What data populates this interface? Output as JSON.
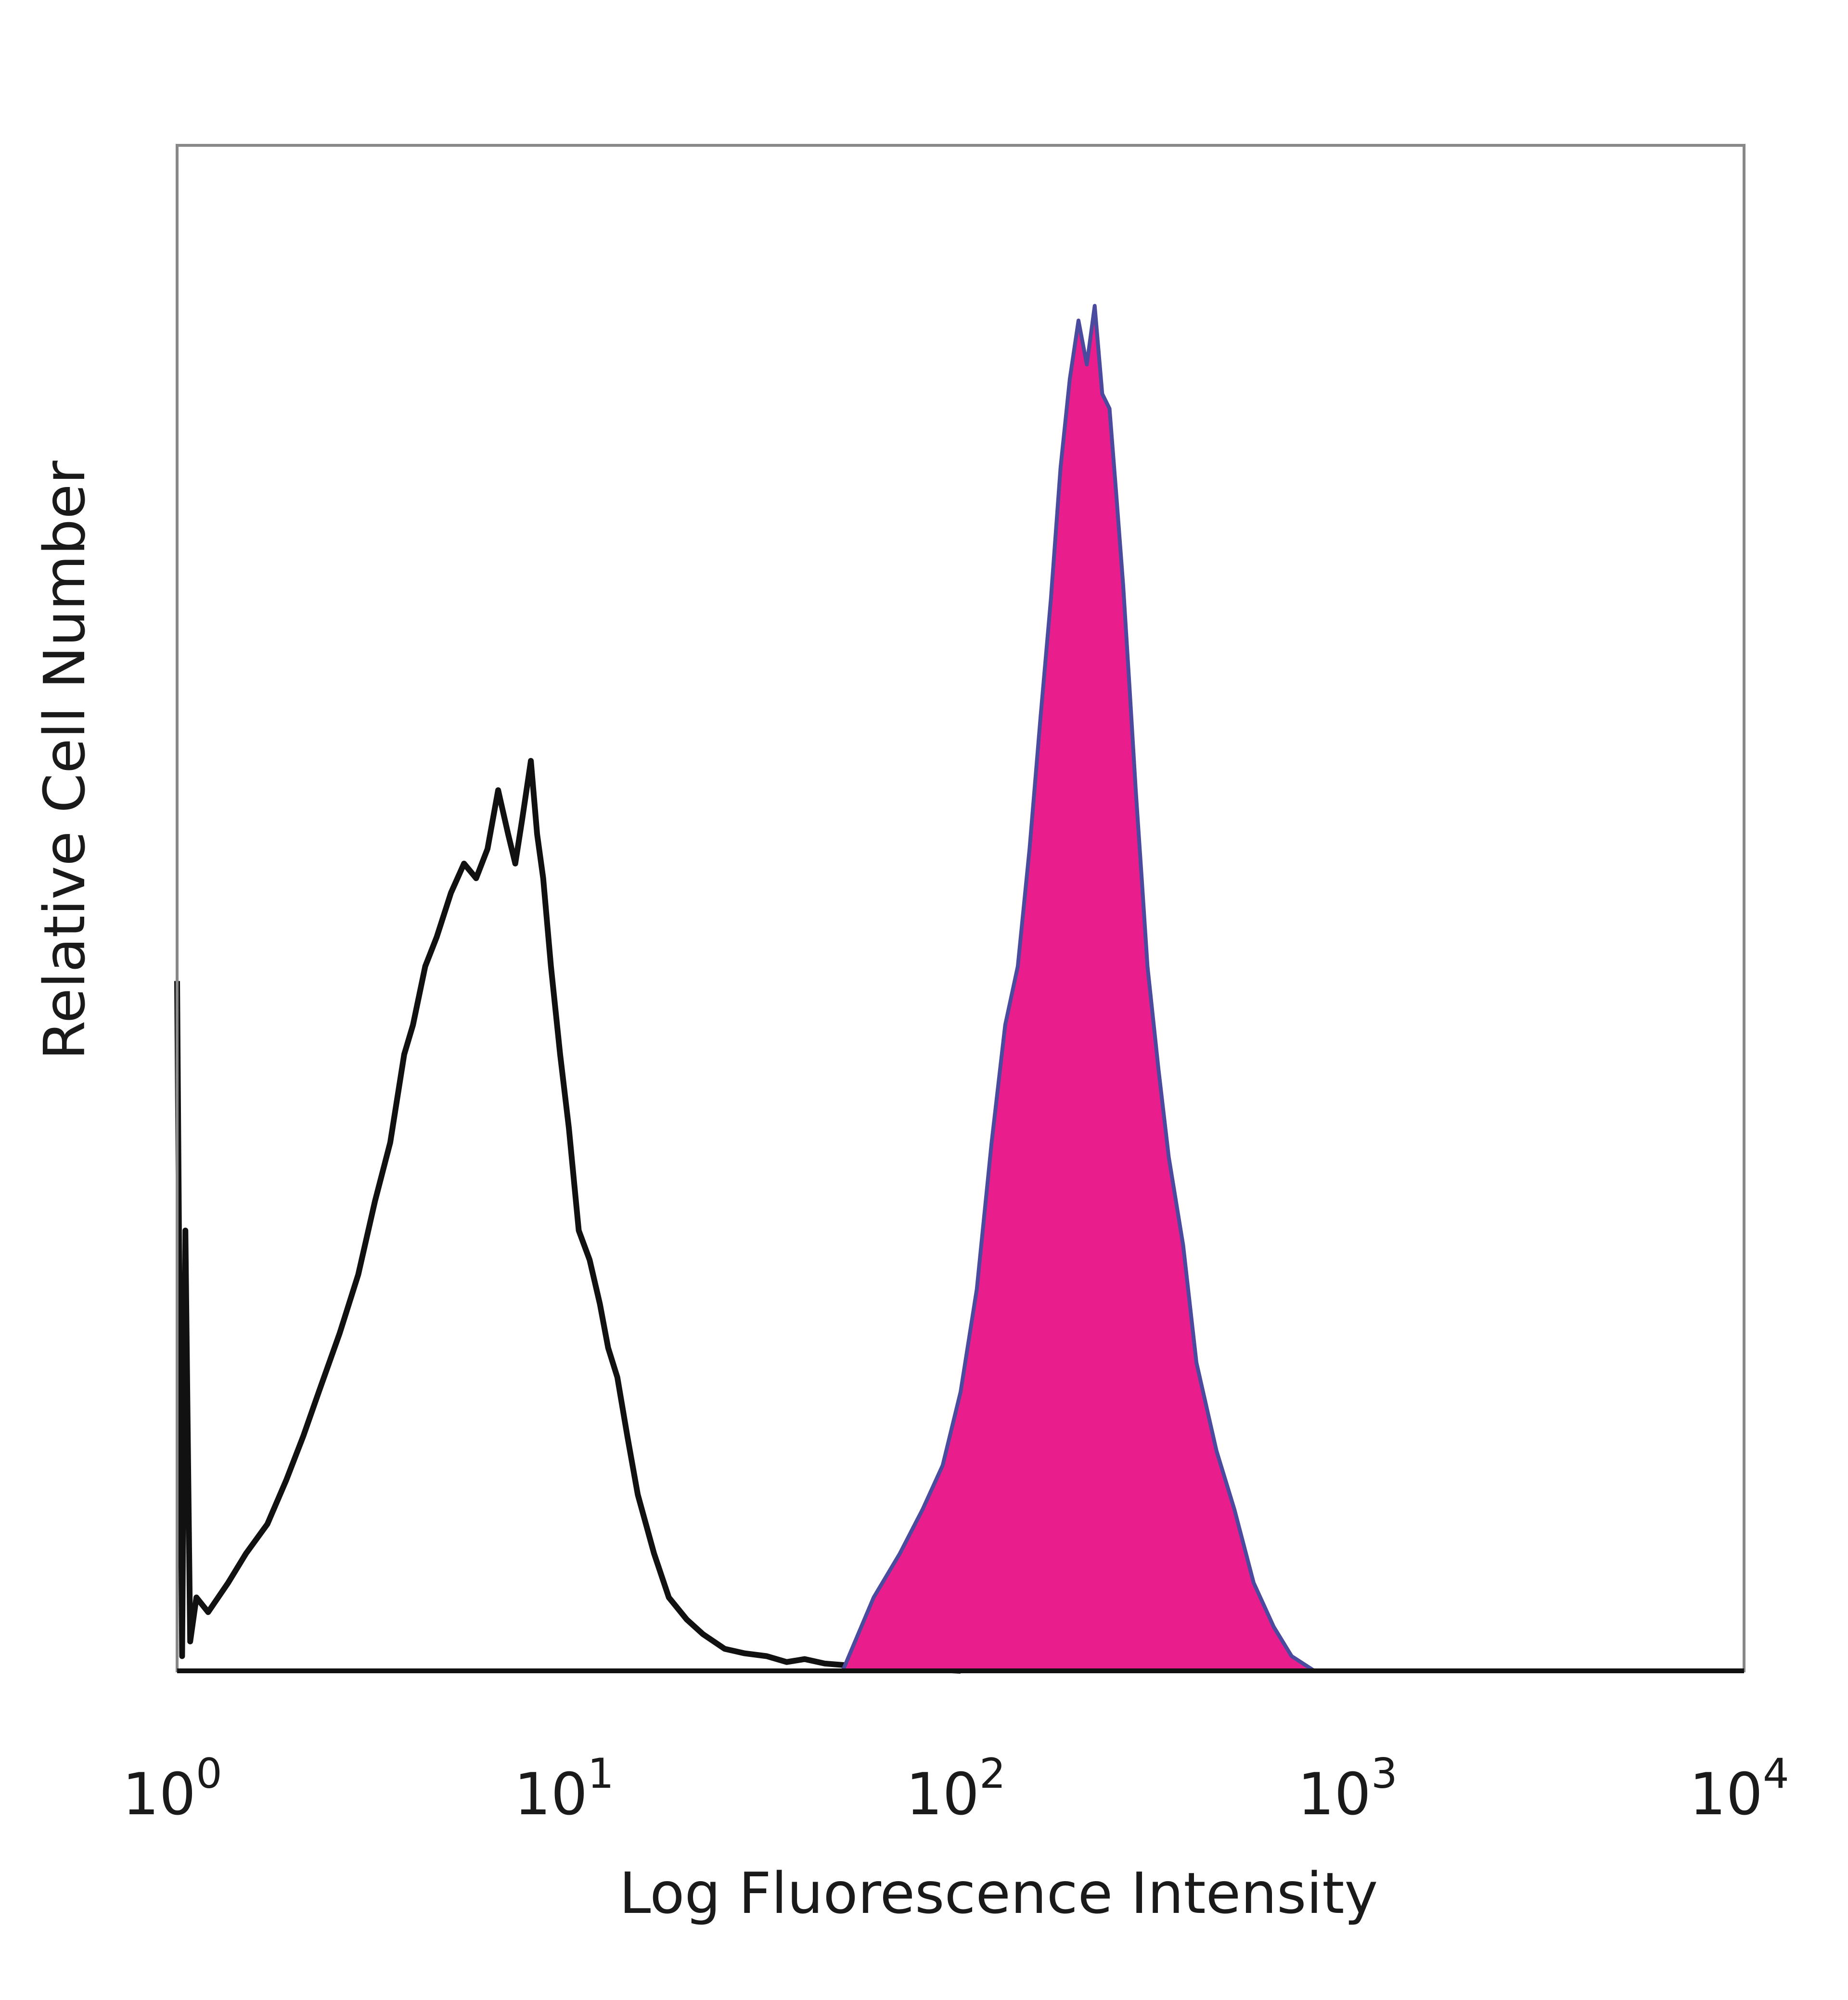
{
  "chart_data": {
    "type": "area",
    "title": "",
    "xlabel": "Log Fluorescence Intensity",
    "ylabel": "Relative Cell Number",
    "x_scale": "log",
    "xlim": [
      1,
      10000
    ],
    "ylim": [
      0,
      100
    ],
    "x_ticks": [
      {
        "base": "10",
        "exp": "0"
      },
      {
        "base": "10",
        "exp": "1"
      },
      {
        "base": "10",
        "exp": "2"
      },
      {
        "base": "10",
        "exp": "3"
      },
      {
        "base": "10",
        "exp": "4"
      }
    ],
    "grid": false,
    "legend": "none",
    "series": [
      {
        "style": "outline",
        "color": "#111111",
        "x": [
          1.0,
          1.03,
          1.05,
          1.08,
          1.12,
          1.2,
          1.35,
          1.5,
          1.7,
          1.9,
          2.1,
          2.3,
          2.6,
          2.9,
          3.2,
          3.5,
          3.8,
          4.0,
          4.3,
          4.6,
          5.0,
          5.4,
          5.8,
          6.2,
          6.6,
          7.0,
          7.3,
          7.6,
          8.0,
          8.3,
          8.6,
          9.0,
          9.5,
          10.0,
          10.6,
          11.3,
          12.0,
          12.6,
          13.3,
          14.1,
          15.0,
          16.5,
          18.0,
          20.0,
          22.0,
          25.0,
          28.0,
          32.0,
          36.0,
          40.0,
          45.0,
          50.0,
          56.0,
          63.0,
          70.0,
          85.0,
          100.0
        ],
        "y": [
          47,
          1,
          30,
          2,
          5,
          4,
          6,
          8,
          10,
          13,
          16,
          19,
          23,
          27,
          32,
          36,
          42,
          44,
          48,
          50,
          53,
          55,
          54,
          56,
          60,
          57,
          55,
          58,
          62,
          57,
          54,
          48,
          42,
          37,
          30,
          28,
          25,
          22,
          20,
          16,
          12,
          8,
          5,
          3.5,
          2.5,
          1.5,
          1.2,
          1.0,
          0.6,
          0.8,
          0.5,
          0.4,
          0.3,
          0.2,
          0.2,
          0.1,
          0
        ]
      },
      {
        "style": "filled",
        "color": "#e91e8c",
        "edge_color": "#4a4a9e",
        "x": [
          50,
          60,
          70,
          80,
          90,
          100,
          110,
          120,
          130,
          140,
          150,
          160,
          170,
          180,
          190,
          200,
          210,
          220,
          230,
          240,
          250,
          260,
          270,
          280,
          290,
          300,
          320,
          340,
          370,
          400,
          450,
          500,
          560,
          630,
          700,
          800
        ],
        "y": [
          0,
          5,
          8,
          11,
          14,
          19,
          26,
          36,
          44,
          48,
          56,
          65,
          73,
          82,
          88,
          92,
          89,
          93,
          87,
          86,
          80,
          74,
          67,
          60,
          54,
          48,
          41,
          35,
          29,
          21,
          15,
          11,
          6,
          3,
          1,
          0
        ]
      }
    ]
  }
}
